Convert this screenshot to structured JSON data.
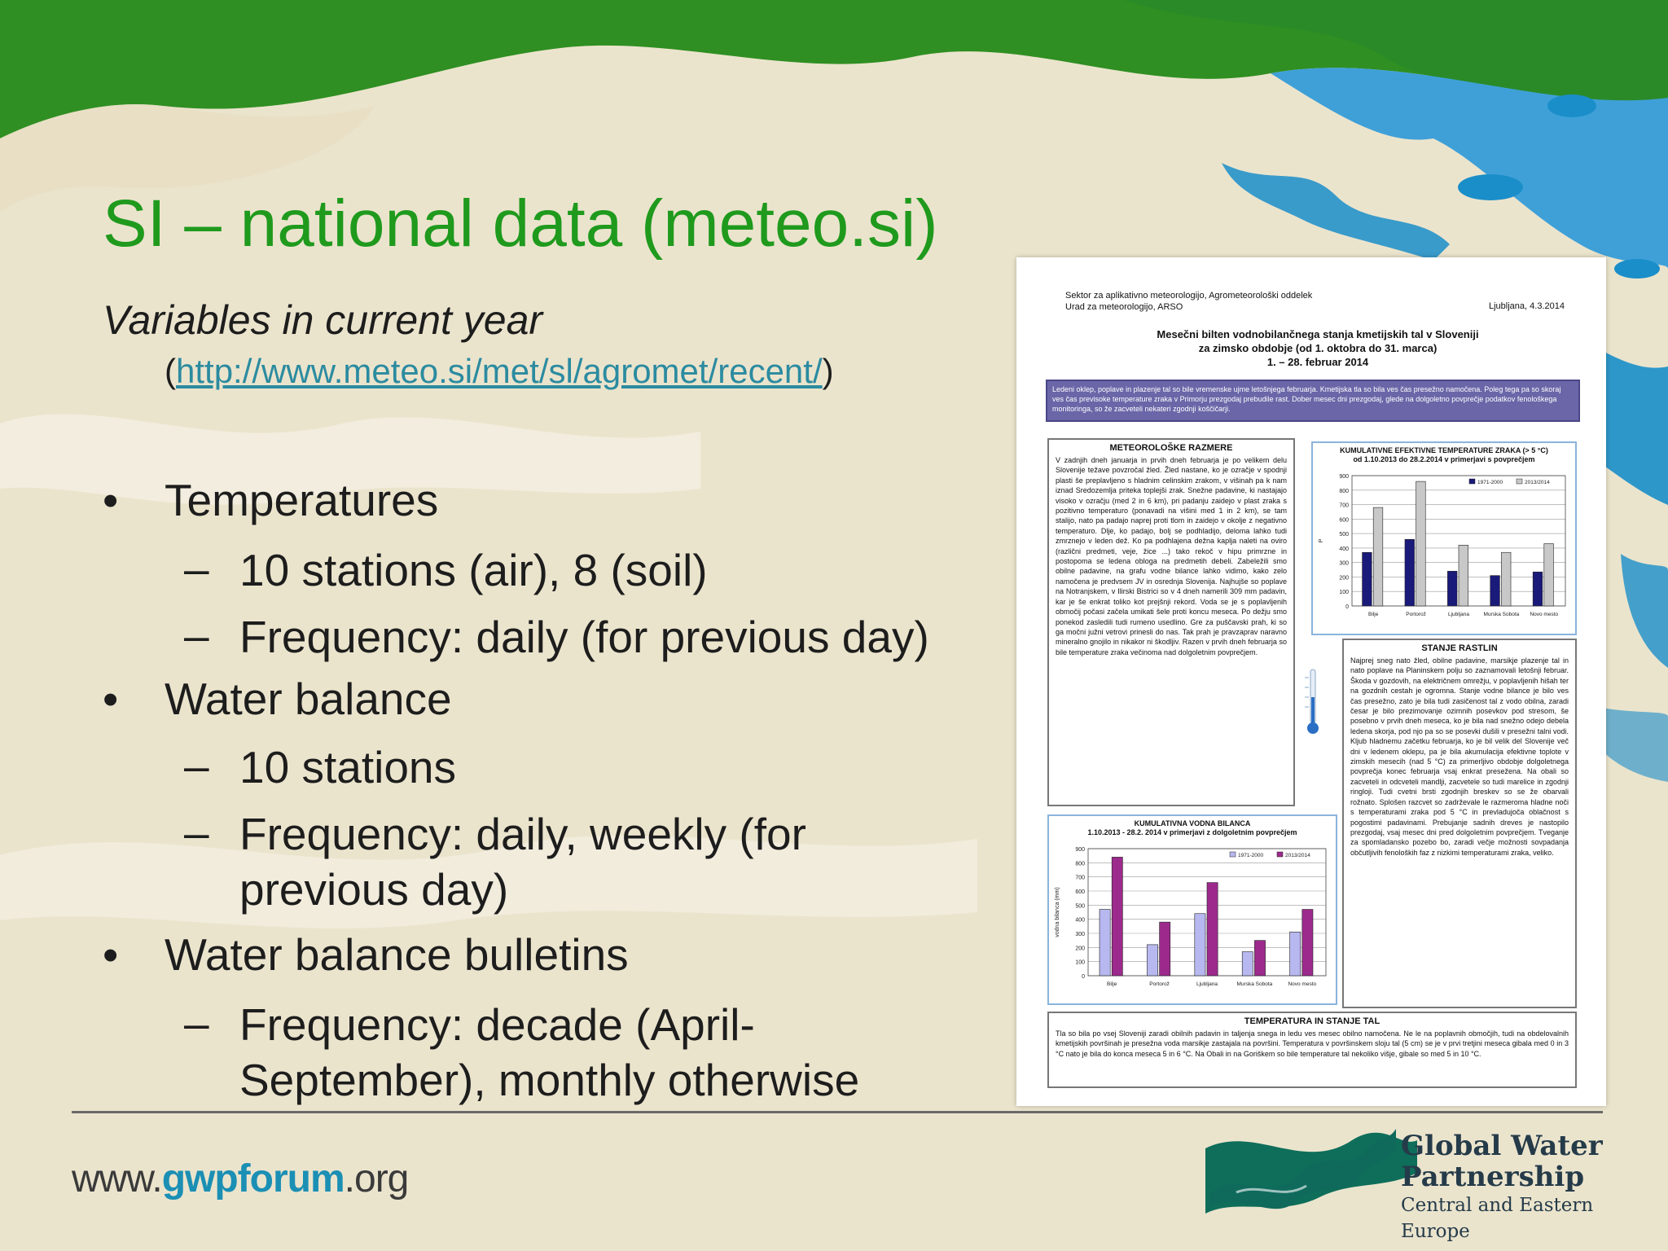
{
  "slide": {
    "title": "SI – national data (meteo.si)",
    "subtitle": "Variables in current year",
    "url_open": "(",
    "url": "http://www.meteo.si/met/sl/agromet/recent/",
    "url_close": ")",
    "bullets": [
      {
        "label": "Temperatures",
        "subs": [
          "10 stations (air), 8 (soil)",
          "Frequency: daily (for previous day)"
        ]
      },
      {
        "label": "Water balance",
        "subs": [
          "10 stations",
          "Frequency: daily, weekly (for previous day)"
        ]
      },
      {
        "label": "Water balance bulletins",
        "subs": [
          "Frequency: decade (April-September), monthly otherwise"
        ]
      }
    ],
    "bullet_glyph": "•",
    "dash_glyph": "–"
  },
  "footer": {
    "url_prefix": "www.",
    "url_highlight": "gwpforum",
    "url_suffix": ".org",
    "logo_line1": "Global Water",
    "logo_line2": "Partnership",
    "logo_line3": "Central and Eastern Europe"
  },
  "bulletin": {
    "header_left_1": "Sektor za aplikativno meteorologijo, Agrometeorološki oddelek",
    "header_left_2": "Urad za meteorologijo, ARSO",
    "header_date": "Ljubljana, 4.3.2014",
    "title_1": "Mesečni bilten vodnobilančnega stanja kmetijskih tal v Sloveniji",
    "title_2": "za zimsko obdobje (od 1. oktobra do 31. marca)",
    "title_3": "1. – 28. februar 2014",
    "banner": "Ledeni oklep, poplave in plazenje tal so bile vremenske ujme letošnjega februarja. Kmetijska tla so bila ves čas presežno namočena. Poleg tega pa so skoraj ves čas previsoke temperature zraka v Primorju prezgodaj prebudile rast. Dober mesec dni prezgodaj, glede na dolgoletno povprečje podatkov fenološkega monitoringa, so že zacveteli nekateri zgodnji koščičarji.",
    "meteo_title": "METEOROLOŠKE RAZMERE",
    "meteo_text": "V zadnjih dneh januarja in prvih dneh februarja je po velikem delu Slovenije težave povzročal žled. Žled nastane, ko je ozračje v spodnji plasti še preplavljeno s hladnim celinskim zrakom, v višinah pa k nam iznad Sredozemlja priteka toplejši zrak. Snežne padavine, ki nastajajo visoko v ozračju (med 2 in 6 km), pri padanju zaidejo v plast zraka s pozitivno temperaturo (ponavadi na višini med 1 in 2 km), se tam stalijo, nato pa padajo naprej proti tlom in zaidejo v okolje z negativno temperaturo. Dlje, ko padajo, bolj se podhladijo, deloma lahko tudi zmrznejo v leden dež. Ko pa podhlajena dežna kaplja naleti na oviro (različni predmeti, veje, žice ...) tako rekoč v hipu primrzne in postopoma se ledena obloga na predmetih debeli. Zabeležili smo obilne padavine, na grafu vodne bilance lahko vidimo, kako zelo namočena je predvsem JV in osrednja Slovenija. Najhujše so poplave na Notranjskem, v Ilirski Bistrici so v 4 dneh namerili 309 mm padavin, kar je še enkrat toliko kot prejšnji rekord. Voda se je s poplavljenih območij počasi začela umikati šele proti koncu meseca. Po dežju smo ponekod zasledili tudi rumeno usedlino. Gre za puščavski prah, ki so ga močni južni vetrovi prinesli do nas. Tak prah je pravzaprav naravno mineralno gnojilo in nikakor ni škodljiv. Razen v prvih dneh februarja so bile temperature zraka večinoma nad dolgoletnim povprečjem.",
    "rast_title": "STANJE RASTLIN",
    "rast_text": "Najprej sneg nato žled, obilne padavine, marsikje plazenje tal in nato poplave na Planinskem polju so zaznamovali letošnji februar. Škoda v gozdovih, na električnem omrežju, v poplavljenih hišah ter na gozdnih cestah je ogromna. Stanje vodne bilance je bilo ves čas presežno, zato je bila tudi zasičenost tal z vodo obilna, zaradi česar je bilo prezimovanje ozimnih posevkov pod stresom, še posebno v prvih dneh meseca, ko je bila nad snežno odejo debela ledena skorja, pod njo pa so se posevki dušili v presežni talni vodi. Kljub hladnemu začetku februarja, ko je bil velik del Slovenije več dni v ledenem oklepu, pa je bila akumulacija efektivne toplote v zimskih mesecih (nad 5 °C) za primerljivo obdobje dolgoletnega povprečja konec februarja vsaj enkrat presežena. Na obali so zacveteli in odcveteli mandlji, zacvetele so tudi marelice in zgodnji ringloji. Tudi cvetni brsti zgodnjih breskev so se že obarvali rožnato. Splošen razcvet so zadrževale le razmeroma hladne noči s temperaturami zraka pod 5 °C in prevladujoča oblačnost s pogostimi padavinami. Prebujanje sadnih dreves je nastopilo prezgodaj, vsaj mesec dni pred dolgoletnim povprečjem. Tveganje za spomladansko pozebo bo, zaradi večje možnosti sovpadanja občutljivih fenoloških faz z nizkimi temperaturami zraka, veliko.",
    "temp_title": "TEMPERATURA IN STANJE TAL",
    "temp_text": "Tla so bila po vsej Sloveniji zaradi obilnih padavin in taljenja snega in ledu ves mesec obilno namočena. Ne le na poplavnih območjih, tudi na obdelovalnih kmetijskih površinah je presežna voda marsikje zastajala na površini. Temperatura v površinskem sloju tal (5 cm) se je v prvi tretjini meseca gibala med 0 in 3 °C nato je bila do konca meseca 5 in 6 °C. Na Obali in na Goriškem so bile temperature tal nekoliko višje, gibale so med 5 in 10 °C."
  },
  "chart_data": [
    {
      "type": "bar",
      "title": "KUMULATIVNE EFEKTIVNE TEMPERATURE ZRAKA (> 5 °C)",
      "subtitle": "od 1.10.2013 do 28.2.2014 v primerjavi s povprečjem",
      "ylabel": "P",
      "categories": [
        "Bilje",
        "Portorož",
        "Ljubljana",
        "Murska Sobota",
        "Novo mesto"
      ],
      "series": [
        {
          "name": "1971-2000",
          "values": [
            370,
            460,
            240,
            210,
            235
          ],
          "color": "#1a1a7a"
        },
        {
          "name": "2013/2014",
          "values": [
            680,
            860,
            420,
            370,
            430
          ],
          "color": "#c8c8c8"
        }
      ],
      "ylim": [
        0,
        900
      ],
      "yticks": [
        0,
        100,
        200,
        300,
        400,
        500,
        600,
        700,
        800,
        900
      ],
      "legend": "top-right",
      "grid": true
    },
    {
      "type": "bar",
      "title": "KUMULATIVNA VODNA BILANCA",
      "subtitle": "1.10.2013 - 28.2. 2014 v primerjavi z dolgoletnim povprečjem",
      "ylabel": "vodna bilanca (mm)",
      "categories": [
        "Bilje",
        "Portorož",
        "Ljubljana",
        "Murska Sobota",
        "Novo mesto"
      ],
      "series": [
        {
          "name": "1971-2000",
          "values": [
            470,
            220,
            440,
            170,
            310
          ],
          "color": "#b8b8f0"
        },
        {
          "name": "2013/2014",
          "values": [
            840,
            380,
            660,
            250,
            470
          ],
          "color": "#9c2a8c"
        }
      ],
      "ylim": [
        0,
        900
      ],
      "yticks": [
        0,
        100,
        200,
        300,
        400,
        500,
        600,
        700,
        800,
        900
      ],
      "legend": "top-right",
      "grid": true
    }
  ],
  "colors": {
    "title_green": "#1f9a1d",
    "link_teal": "#2b8ba0",
    "banner_purple": "#6a66a8",
    "background_sand": "#ece6d2",
    "forest_green": "#2f8f22",
    "sea_blue": "#1a8ec9"
  }
}
